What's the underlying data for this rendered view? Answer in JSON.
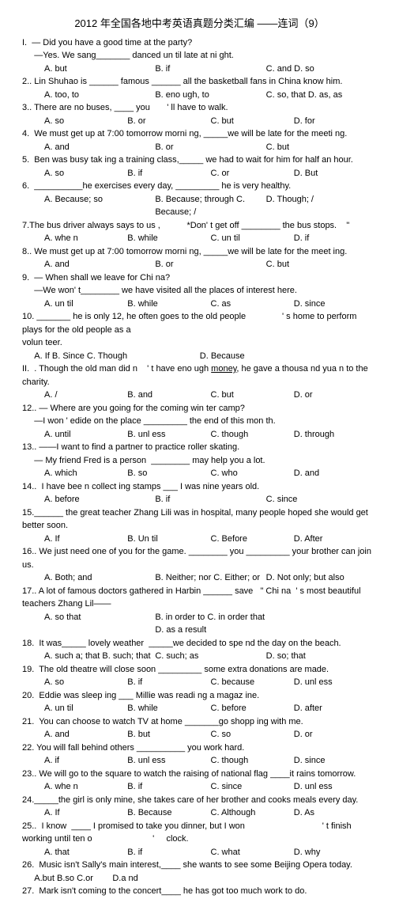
{
  "title": "2012 年全国各地中考英语真题分类汇编 ——连词（9）",
  "q": [
    "I.  — Did you have a good time at the party?",
    "     —Yes. We sang_______ danced un til late at ni ght.",
    [
      "A. but",
      "B. if",
      "C. and D. so"
    ],
    "2.. Lin Shuhao is ______ famous ______ all the basketball fans in China know him.",
    [
      "A. too, to",
      "B. eno ugh, to",
      "C. so, that D. as, as"
    ],
    "3.. There are no buses, ____ you       ' ll have to walk.",
    [
      "A. so",
      "B. or",
      "C. but",
      "D. for"
    ],
    "4.  We must get up at 7:00 tomorrow morni ng, _____we will be late for the meeti ng.",
    [
      "A. and",
      "B. or",
      "C. but"
    ],
    "5.  Ben was busy tak ing a training class,_____ we had to wait for him for half an hour.",
    [
      "A. so",
      "B. if",
      "C. or",
      "D. But"
    ],
    "6.  __________he exercises every day, _________ he is very healthy.",
    [
      "A. Because; so",
      "B. Because; through C. Because; /",
      "D. Though; /"
    ],
    "7.The bus driver always says to us ,           *Don' t get off ________ the bus stops.    \"",
    [
      "A. whe n",
      "B. while",
      "C. un til",
      "D. if"
    ],
    "8.. We must get up at 7:00 tomorrow morni ng, _____we will be late for the meet ing.",
    [
      "A. and",
      "B. or",
      "C. but"
    ],
    "9.  — When shall we leave for Chi na?",
    "     —We won' t________ we have visited all the places of interest here.",
    [
      "A. un til",
      "B. while",
      "C. as",
      "D. since"
    ],
    "10. _______ he is only 12, he often goes to the old people               ' s home to perform plays for the old people as a",
    "volun teer.",
    "     A. If B. Since C. Though                              D. Because",
    "II.  . Though the old man did n    ' t have eno ugh ",
    "money",
    ", he gave a thousa nd yua n to the charity.",
    [
      "A. /",
      "B. and",
      "C. but",
      "D. or"
    ],
    "12.. — Where are you going for the coming win ter camp?",
    "     —I won ' edide on the place _________ the end of this mon th.",
    [
      "A. until",
      "B. unl ess",
      "C. though",
      "D. through"
    ],
    "13.. ——I want to find a partner to practice roller skating.",
    "     — My friend Fred is a person  ________ may help you a lot.",
    [
      "A. which",
      "B. so",
      "C. who",
      "D. and"
    ],
    "14..  I have bee n collect ing stamps ___ I was nine years old.",
    [
      "A. before",
      "B. if",
      "C. since"
    ],
    "15.______ the great teacher Zhang Lili was in hospital, many people hoped she would get better soon.",
    [
      "A. If",
      "B. Un til",
      "C. Before",
      "D. After"
    ],
    "16.. We just need one of you for the game. ________ you _________ your brother can join us.",
    [
      "A. Both; and",
      "B. Neither; nor C. Either; or",
      "D. Not only; but also"
    ],
    "17.. A lot of famous doctors gathered in Harbin ______ save   \" Chi na  ' s most beautiful teachers Zhang Lil——",
    [
      "A. so that",
      "B. in order to C. in order that D. as a result",
      ""
    ],
    "18.  It was_____ lovely weather  _____we decided to spe nd the day on the beach.",
    [
      "A. such a; that B. such; that",
      "C. such; as",
      "D. so; that"
    ],
    "19.  The old theatre will close soon _________ some extra donations are made.",
    [
      "A. so",
      "B. if",
      "C. because",
      "D. unl ess"
    ],
    "20.  Eddie was sleep ing ___ Millie was readi ng a magaz ine.",
    [
      "A. un til",
      "B. while",
      "C. before",
      "D. after"
    ],
    "21.  You can choose to watch TV at home _______go shopp ing with me.",
    [
      "A. and",
      "B. but",
      "C. so",
      "D. or"
    ],
    "22. You will fall behind others __________ you work hard.",
    [
      "A. if",
      "B. unl ess",
      "C. though",
      "D. since"
    ],
    "23.. We will go to the square to watch the raising of national flag ____it rains tomorrow.",
    [
      "A. whe n",
      "B. if",
      "C. since",
      "D. unl ess"
    ],
    "24._____the girl is only mine, she takes care of her brother and cooks meals every day.",
    [
      "A. If",
      "B. Because",
      "C. Although",
      "D. As"
    ],
    "25..  I know  ____ I promised to take you dinner, but I won                                ' t finish working until ten o                         '     clock.",
    [
      "A. that",
      "B. if",
      "C. what",
      "D. why"
    ],
    "26.  Music isn't Sally's main interest,____ she wants to see some Beijing Opera today.",
    "     A.but B.so C.or        D.a nd",
    "27.  Mark isn't coming to the concert____ he has got too much work to do."
  ]
}
